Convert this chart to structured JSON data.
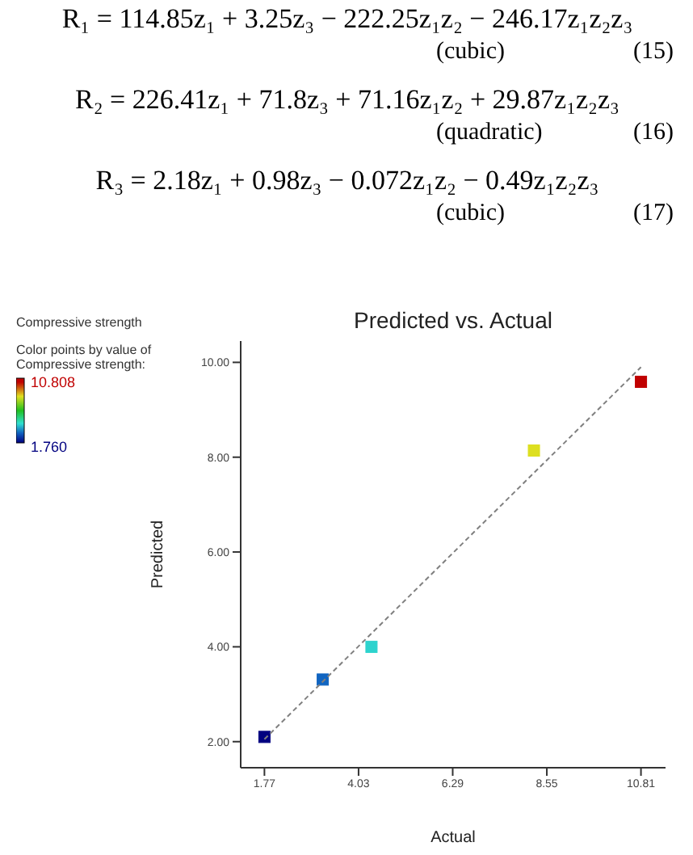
{
  "chart_data": {
    "type": "scatter",
    "title": "Predicted vs. Actual",
    "subtitle": "Compressive strength",
    "xlabel": "Actual",
    "ylabel": "Predicted",
    "clabel": "Color points by value of Compressive strength:",
    "annotations": [
      "R₁ = 114.85z₁ + 3.25z₃ − 222.25z₁z₂ − 246.17z₁z₂z₃",
      "(cubic)",
      "(15)",
      "R₂ = 226.41z₁ + 71.8z₃ + 71.16z₁z₂ + 29.87z₁z₂z₃",
      "(quadratic)",
      "(16)",
      "R₃ = 2.18z₁ + 0.98z₃ − 0.072z₁z₂ − 0.49z₁z₂z₃",
      "(cubic)",
      "(17)"
    ],
    "series": [
      {
        "marker": "square",
        "x": [
          1.77,
          3.17,
          4.34,
          8.24,
          10.81
        ],
        "values": [
          2.1,
          3.31,
          4.0,
          8.14,
          9.59
        ],
        "cvalues": [
          1.77,
          3.17,
          4.34,
          8.24,
          10.808
        ],
        "colors": [
          "#000180",
          "#1165c1",
          "#2dd3ce",
          "#dddf20",
          "#c00000"
        ]
      },
      {
        "type": "line",
        "line_style": "dashed",
        "color": "#808080",
        "x": [
          1.77,
          10.81
        ],
        "values": [
          2.05,
          9.9
        ]
      }
    ],
    "clim": [
      1.76,
      10.808
    ],
    "cticks": [
      {
        "value": 10.808,
        "label": "10.808"
      },
      {
        "value": 1.76,
        "label": "1.760"
      }
    ],
    "xlim": [
      1.2,
      11.4
    ],
    "xticks": [
      1.77,
      4.03,
      6.29,
      8.55,
      10.81
    ],
    "ylim": [
      1.45,
      10.45
    ],
    "yticks": [
      {
        "value": 2,
        "label": "2.00"
      },
      {
        "value": 4,
        "label": "4.00"
      },
      {
        "value": 6,
        "label": "6.00"
      },
      {
        "value": 8,
        "label": "8.00"
      },
      {
        "value": 10,
        "label": "10.00"
      }
    ]
  }
}
